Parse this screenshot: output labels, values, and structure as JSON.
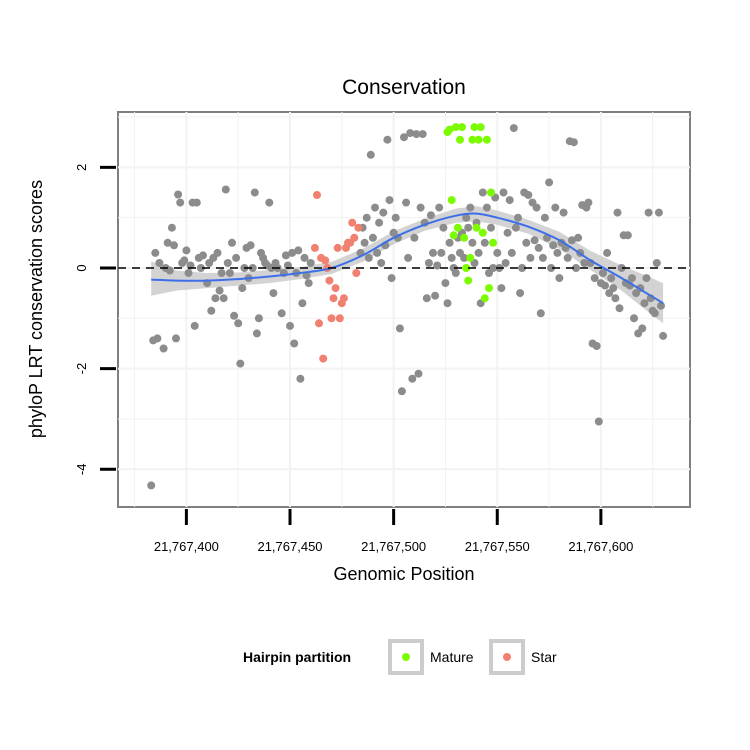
{
  "chart_data": {
    "type": "scatter",
    "title": "Conservation",
    "xlabel": "Genomic Position",
    "ylabel": "phyloP LRT conservation scores",
    "xlim": [
      21767367,
      21767643
    ],
    "ylim": [
      -4.75,
      3.1
    ],
    "x_ticks": [
      21767400,
      21767450,
      21767500,
      21767550,
      21767600
    ],
    "x_tick_labels": [
      "21,767,400",
      "21,767,450",
      "21,767,500",
      "21,767,550",
      "21,767,600"
    ],
    "y_ticks": [
      -4,
      -2,
      0,
      2
    ],
    "y_tick_labels": [
      "-4",
      "-2",
      "0",
      "2"
    ],
    "reference_line": {
      "y": 0,
      "style": "dashed"
    },
    "legend": {
      "title": "Hairpin partition",
      "position": "bottom",
      "entries": [
        {
          "label": "Mature",
          "color": "#7cfc00"
        },
        {
          "label": "Star",
          "color": "#f08070"
        }
      ]
    },
    "colors": {
      "other": "#8c8c8c",
      "Mature": "#7cfc00",
      "Star": "#f08070",
      "smooth": "#3c6fe8",
      "band": "#c8c8c8"
    },
    "series": [
      {
        "name": "Other",
        "points": [
          [
            21767383,
            -4.32
          ],
          [
            21767384,
            -1.44
          ],
          [
            21767385,
            0.3
          ],
          [
            21767386,
            -1.4
          ],
          [
            21767387,
            0.1
          ],
          [
            21767389,
            -1.6
          ],
          [
            21767390,
            0.0
          ],
          [
            21767391,
            0.5
          ],
          [
            21767392,
            -0.05
          ],
          [
            21767393,
            0.8
          ],
          [
            21767394,
            0.45
          ],
          [
            21767395,
            -1.4
          ],
          [
            21767396,
            1.46
          ],
          [
            21767397,
            1.3
          ],
          [
            21767398,
            0.1
          ],
          [
            21767399,
            0.15
          ],
          [
            21767400,
            0.35
          ],
          [
            21767401,
            -0.1
          ],
          [
            21767402,
            0.05
          ],
          [
            21767403,
            1.3
          ],
          [
            21767404,
            -1.15
          ],
          [
            21767405,
            1.3
          ],
          [
            21767406,
            0.2
          ],
          [
            21767407,
            0.0
          ],
          [
            21767408,
            0.25
          ],
          [
            21767410,
            -0.3
          ],
          [
            21767411,
            0.1
          ],
          [
            21767412,
            -0.85
          ],
          [
            21767413,
            0.2
          ],
          [
            21767414,
            -0.6
          ],
          [
            21767415,
            0.3
          ],
          [
            21767416,
            -0.45
          ],
          [
            21767417,
            -0.1
          ],
          [
            21767418,
            -0.6
          ],
          [
            21767419,
            1.56
          ],
          [
            21767420,
            0.1
          ],
          [
            21767421,
            -0.1
          ],
          [
            21767422,
            0.5
          ],
          [
            21767423,
            -0.95
          ],
          [
            21767424,
            0.2
          ],
          [
            21767425,
            -1.1
          ],
          [
            21767426,
            -1.9
          ],
          [
            21767427,
            -0.4
          ],
          [
            21767428,
            0.0
          ],
          [
            21767429,
            0.4
          ],
          [
            21767430,
            -0.2
          ],
          [
            21767431,
            0.45
          ],
          [
            21767432,
            0.0
          ],
          [
            21767433,
            1.5
          ],
          [
            21767434,
            -1.3
          ],
          [
            21767435,
            -1.0
          ],
          [
            21767436,
            0.3
          ],
          [
            21767437,
            0.2
          ],
          [
            21767438,
            0.1
          ],
          [
            21767439,
            0.05
          ],
          [
            21767440,
            1.3
          ],
          [
            21767441,
            0.0
          ],
          [
            21767442,
            -0.5
          ],
          [
            21767443,
            0.1
          ],
          [
            21767444,
            0.0
          ],
          [
            21767446,
            -0.9
          ],
          [
            21767447,
            -0.1
          ],
          [
            21767448,
            0.25
          ],
          [
            21767449,
            0.05
          ],
          [
            21767450,
            -1.15
          ],
          [
            21767451,
            0.3
          ],
          [
            21767452,
            -1.5
          ],
          [
            21767453,
            -0.1
          ],
          [
            21767454,
            0.35
          ],
          [
            21767455,
            -2.2
          ],
          [
            21767456,
            -0.7
          ],
          [
            21767457,
            0.2
          ],
          [
            21767458,
            -0.15
          ],
          [
            21767459,
            -0.3
          ],
          [
            21767460,
            0.1
          ],
          [
            21767484,
            0.3
          ],
          [
            21767485,
            0.8
          ],
          [
            21767486,
            0.5
          ],
          [
            21767487,
            1.0
          ],
          [
            21767488,
            0.2
          ],
          [
            21767489,
            2.25
          ],
          [
            21767490,
            0.6
          ],
          [
            21767491,
            1.2
          ],
          [
            21767492,
            0.3
          ],
          [
            21767493,
            0.9
          ],
          [
            21767494,
            0.1
          ],
          [
            21767495,
            1.1
          ],
          [
            21767496,
            0.45
          ],
          [
            21767497,
            2.55
          ],
          [
            21767498,
            1.35
          ],
          [
            21767499,
            -0.2
          ],
          [
            21767500,
            0.7
          ],
          [
            21767501,
            1.0
          ],
          [
            21767502,
            0.6
          ],
          [
            21767503,
            -1.2
          ],
          [
            21767504,
            -2.45
          ],
          [
            21767505,
            2.6
          ],
          [
            21767506,
            1.3
          ],
          [
            21767507,
            0.2
          ],
          [
            21767508,
            2.68
          ],
          [
            21767509,
            -2.2
          ],
          [
            21767510,
            0.6
          ],
          [
            21767511,
            2.66
          ],
          [
            21767512,
            -2.1
          ],
          [
            21767513,
            1.2
          ],
          [
            21767514,
            2.66
          ],
          [
            21767515,
            0.9
          ],
          [
            21767516,
            -0.6
          ],
          [
            21767517,
            0.1
          ],
          [
            21767518,
            1.05
          ],
          [
            21767519,
            0.3
          ],
          [
            21767520,
            -0.55
          ],
          [
            21767521,
            0.05
          ],
          [
            21767522,
            1.2
          ],
          [
            21767523,
            0.3
          ],
          [
            21767524,
            0.8
          ],
          [
            21767525,
            -0.3
          ],
          [
            21767526,
            -0.7
          ],
          [
            21767527,
            0.5
          ],
          [
            21767528,
            0.2
          ],
          [
            21767529,
            0.0
          ],
          [
            21767530,
            -0.1
          ],
          [
            21767531,
            0.6
          ],
          [
            21767532,
            0.3
          ],
          [
            21767533,
            0.7
          ],
          [
            21767534,
            0.2
          ],
          [
            21767535,
            1.0
          ],
          [
            21767536,
            0.8
          ],
          [
            21767537,
            1.2
          ],
          [
            21767538,
            0.5
          ],
          [
            21767539,
            0.1
          ],
          [
            21767540,
            0.9
          ],
          [
            21767541,
            0.3
          ],
          [
            21767542,
            -0.7
          ],
          [
            21767543,
            1.5
          ],
          [
            21767544,
            0.5
          ],
          [
            21767545,
            1.2
          ],
          [
            21767546,
            -0.1
          ],
          [
            21767547,
            0.8
          ],
          [
            21767548,
            0.0
          ],
          [
            21767549,
            1.4
          ],
          [
            21767550,
            0.3
          ],
          [
            21767551,
            0.0
          ],
          [
            21767552,
            -0.4
          ],
          [
            21767553,
            1.5
          ],
          [
            21767554,
            0.1
          ],
          [
            21767555,
            0.7
          ],
          [
            21767556,
            1.35
          ],
          [
            21767557,
            0.3
          ],
          [
            21767558,
            2.78
          ],
          [
            21767559,
            0.8
          ],
          [
            21767560,
            1.0
          ],
          [
            21767561,
            -0.5
          ],
          [
            21767562,
            0.0
          ],
          [
            21767563,
            1.5
          ],
          [
            21767564,
            0.5
          ],
          [
            21767565,
            1.45
          ],
          [
            21767566,
            0.2
          ],
          [
            21767567,
            1.3
          ],
          [
            21767568,
            0.55
          ],
          [
            21767569,
            1.2
          ],
          [
            21767570,
            0.4
          ],
          [
            21767571,
            -0.9
          ],
          [
            21767572,
            0.2
          ],
          [
            21767573,
            1.0
          ],
          [
            21767574,
            0.6
          ],
          [
            21767575,
            1.7
          ],
          [
            21767576,
            0.0
          ],
          [
            21767577,
            0.45
          ],
          [
            21767578,
            1.2
          ],
          [
            21767579,
            0.3
          ],
          [
            21767580,
            -0.2
          ],
          [
            21767581,
            0.5
          ],
          [
            21767582,
            1.1
          ],
          [
            21767583,
            0.4
          ],
          [
            21767584,
            0.2
          ],
          [
            21767585,
            2.52
          ],
          [
            21767586,
            0.55
          ],
          [
            21767587,
            2.5
          ],
          [
            21767588,
            0.0
          ],
          [
            21767589,
            0.6
          ],
          [
            21767590,
            0.3
          ],
          [
            21767591,
            1.25
          ],
          [
            21767592,
            0.1
          ],
          [
            21767593,
            1.2
          ],
          [
            21767594,
            1.3
          ],
          [
            21767595,
            0.1
          ],
          [
            21767596,
            -1.5
          ],
          [
            21767597,
            -0.2
          ],
          [
            21767598,
            -1.55
          ],
          [
            21767599,
            -3.05
          ],
          [
            21767600,
            -0.3
          ],
          [
            21767601,
            -0.1
          ],
          [
            21767602,
            -0.35
          ],
          [
            21767603,
            0.3
          ],
          [
            21767604,
            -0.5
          ],
          [
            21767605,
            -0.2
          ],
          [
            21767606,
            -0.4
          ],
          [
            21767607,
            -0.6
          ],
          [
            21767608,
            1.1
          ],
          [
            21767609,
            -0.8
          ],
          [
            21767610,
            0.0
          ],
          [
            21767611,
            0.65
          ],
          [
            21767612,
            -0.3
          ],
          [
            21767613,
            0.65
          ],
          [
            21767614,
            -0.35
          ],
          [
            21767615,
            -0.2
          ],
          [
            21767616,
            -1.0
          ],
          [
            21767617,
            -0.5
          ],
          [
            21767618,
            -1.3
          ],
          [
            21767619,
            -0.4
          ],
          [
            21767620,
            -1.2
          ],
          [
            21767621,
            -0.7
          ],
          [
            21767622,
            -0.2
          ],
          [
            21767623,
            1.1
          ],
          [
            21767624,
            -0.6
          ],
          [
            21767625,
            -0.85
          ],
          [
            21767626,
            -0.9
          ],
          [
            21767627,
            0.1
          ],
          [
            21767628,
            1.1
          ],
          [
            21767629,
            -0.75
          ],
          [
            21767630,
            -1.35
          ]
        ]
      },
      {
        "name": "Mature",
        "points": [
          [
            21767526,
            2.7
          ],
          [
            21767527,
            2.75
          ],
          [
            21767528,
            1.35
          ],
          [
            21767529,
            0.65
          ],
          [
            21767530,
            2.8
          ],
          [
            21767531,
            0.8
          ],
          [
            21767532,
            2.55
          ],
          [
            21767533,
            2.8
          ],
          [
            21767534,
            0.6
          ],
          [
            21767535,
            0.0
          ],
          [
            21767536,
            -0.25
          ],
          [
            21767537,
            0.2
          ],
          [
            21767538,
            2.55
          ],
          [
            21767539,
            2.8
          ],
          [
            21767540,
            0.8
          ],
          [
            21767541,
            2.55
          ],
          [
            21767542,
            2.8
          ],
          [
            21767543,
            0.7
          ],
          [
            21767544,
            -0.6
          ],
          [
            21767545,
            2.55
          ],
          [
            21767546,
            -0.4
          ],
          [
            21767547,
            1.5
          ],
          [
            21767548,
            0.5
          ]
        ]
      },
      {
        "name": "Star",
        "points": [
          [
            21767462,
            0.4
          ],
          [
            21767463,
            1.45
          ],
          [
            21767464,
            -1.1
          ],
          [
            21767465,
            0.2
          ],
          [
            21767466,
            -1.8
          ],
          [
            21767467,
            0.15
          ],
          [
            21767468,
            0.0
          ],
          [
            21767469,
            -0.25
          ],
          [
            21767470,
            -1.0
          ],
          [
            21767471,
            -0.6
          ],
          [
            21767472,
            -0.4
          ],
          [
            21767473,
            0.4
          ],
          [
            21767474,
            -1.0
          ],
          [
            21767475,
            -0.7
          ],
          [
            21767476,
            -0.6
          ],
          [
            21767477,
            0.4
          ],
          [
            21767478,
            0.5
          ],
          [
            21767479,
            0.5
          ],
          [
            21767480,
            0.9
          ],
          [
            21767481,
            0.6
          ],
          [
            21767482,
            -0.1
          ],
          [
            21767483,
            0.8
          ]
        ]
      }
    ],
    "smooth": {
      "x": [
        21767383,
        21767395,
        21767410,
        21767425,
        21767440,
        21767455,
        21767470,
        21767485,
        21767500,
        21767515,
        21767530,
        21767540,
        21767550,
        21767565,
        21767580,
        21767595,
        21767610,
        21767620,
        21767630
      ],
      "y": [
        -0.23,
        -0.25,
        -0.25,
        -0.22,
        -0.17,
        -0.1,
        0.0,
        0.25,
        0.6,
        0.86,
        1.04,
        1.08,
        1.0,
        0.82,
        0.55,
        0.15,
        -0.2,
        -0.45,
        -0.7
      ],
      "band_low": [
        -0.55,
        -0.45,
        -0.4,
        -0.35,
        -0.3,
        -0.22,
        -0.12,
        0.12,
        0.47,
        0.74,
        0.9,
        0.93,
        0.86,
        0.68,
        0.38,
        -0.04,
        -0.45,
        -0.78,
        -1.1
      ],
      "band_high": [
        0.13,
        -0.05,
        -0.1,
        -0.09,
        -0.04,
        0.02,
        0.12,
        0.38,
        0.73,
        0.98,
        1.18,
        1.23,
        1.14,
        0.96,
        0.72,
        0.34,
        0.05,
        -0.12,
        -0.3
      ]
    }
  }
}
